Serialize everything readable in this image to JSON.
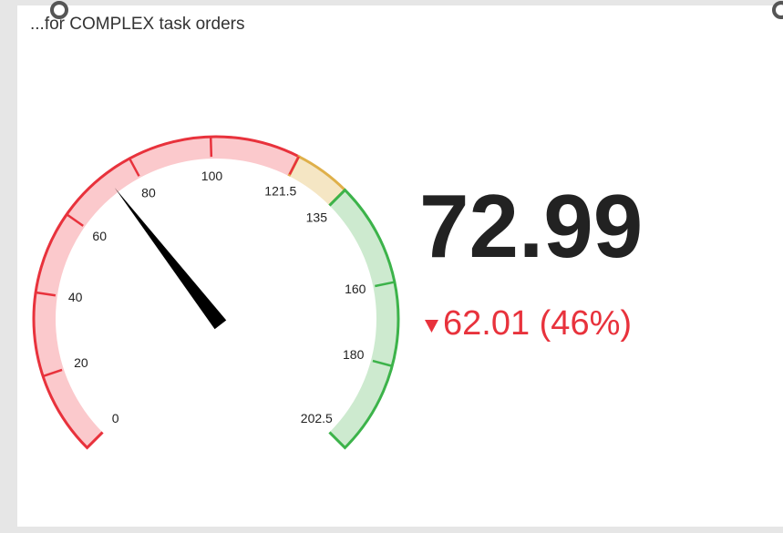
{
  "chart_data": {
    "type": "gauge",
    "title": "...for COMPLEX task orders",
    "value": 72.99,
    "delta_label": "62.01 (46%)",
    "delta_direction": "down",
    "ylim": [
      0,
      202.5
    ],
    "yticks": [
      0,
      20,
      40,
      60,
      80,
      100,
      121.5,
      135,
      160,
      180,
      202.5
    ],
    "bands": [
      {
        "from": 0,
        "to": 121.5,
        "color": "#e8323c",
        "fill": "#fbc9cc"
      },
      {
        "from": 121.5,
        "to": 135,
        "color": "#dfb04a",
        "fill": "#f5e6c4"
      },
      {
        "from": 135,
        "to": 202.5,
        "color": "#3cb34a",
        "fill": "#cdeacf"
      }
    ],
    "value_color": "#222222",
    "delta_color": "#e8323c"
  }
}
